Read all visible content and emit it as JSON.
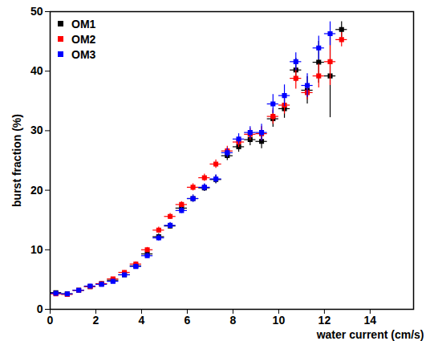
{
  "chart_data": {
    "type": "scatter",
    "x_label": "water current (cm/s)",
    "y_label": "burst fraction (%)",
    "x": [
      0.25,
      0.75,
      1.25,
      1.75,
      2.25,
      2.75,
      3.25,
      3.75,
      4.25,
      4.75,
      5.25,
      5.75,
      6.25,
      6.75,
      7.25,
      7.75,
      8.25,
      8.75,
      9.25,
      9.75,
      10.25,
      10.75,
      11.25,
      11.75,
      12.25,
      12.75
    ],
    "x_error": 0.25,
    "series": [
      {
        "name": "OM1",
        "color": "#000000",
        "values": [
          2.8,
          2.6,
          3.2,
          3.8,
          4.3,
          4.9,
          5.8,
          7.3,
          9.3,
          12.2,
          14.0,
          17.0,
          18.6,
          20.4,
          21.8,
          25.8,
          27.3,
          28.5,
          28.2,
          32.0,
          33.7,
          40.2,
          36.8,
          41.5,
          39.2,
          47.0
        ],
        "y_errors": [
          0.3,
          0.2,
          0.2,
          0.3,
          0.3,
          0.3,
          0.3,
          0.4,
          0.4,
          0.5,
          0.5,
          0.5,
          0.6,
          0.6,
          0.7,
          0.8,
          0.9,
          1.0,
          1.2,
          1.4,
          1.6,
          2.0,
          2.3,
          3.5,
          7.0,
          1.3
        ]
      },
      {
        "name": "OM2",
        "color": "#ff0000",
        "values": [
          2.6,
          2.5,
          3.2,
          3.8,
          4.3,
          5.1,
          6.2,
          7.6,
          10.0,
          13.3,
          15.6,
          17.6,
          20.5,
          22.1,
          24.4,
          26.6,
          28.1,
          29.4,
          29.5,
          32.4,
          34.3,
          38.8,
          36.4,
          39.2,
          41.6,
          45.3
        ],
        "y_errors": [
          0.3,
          0.2,
          0.2,
          0.3,
          0.3,
          0.3,
          0.3,
          0.4,
          0.4,
          0.5,
          0.5,
          0.5,
          0.6,
          0.6,
          0.7,
          0.8,
          0.9,
          1.0,
          1.2,
          1.3,
          1.5,
          1.8,
          1.2,
          2.0,
          4.0,
          1.2
        ]
      },
      {
        "name": "OM3",
        "color": "#0000ff",
        "values": [
          2.7,
          2.6,
          3.2,
          3.9,
          4.2,
          4.7,
          5.8,
          7.2,
          9.0,
          12.0,
          14.1,
          16.6,
          18.6,
          20.5,
          21.9,
          26.3,
          28.6,
          29.7,
          29.7,
          34.5,
          35.9,
          41.6,
          37.6,
          43.9,
          46.3,
          null
        ],
        "y_errors": [
          0.3,
          0.2,
          0.2,
          0.3,
          0.3,
          0.3,
          0.3,
          0.4,
          0.4,
          0.5,
          0.5,
          0.5,
          0.6,
          0.6,
          0.7,
          0.8,
          0.9,
          1.0,
          1.4,
          1.6,
          1.8,
          1.5,
          2.0,
          2.0,
          2.0,
          null
        ]
      }
    ],
    "xlim": [
      0,
      15.9
    ],
    "ylim": [
      0,
      50
    ],
    "xticks": [
      0,
      2,
      4,
      6,
      8,
      10,
      12,
      14
    ],
    "yticks": [
      0,
      10,
      20,
      30,
      40,
      50
    ],
    "grid": false,
    "legend": "top-left",
    "marker": "square"
  }
}
